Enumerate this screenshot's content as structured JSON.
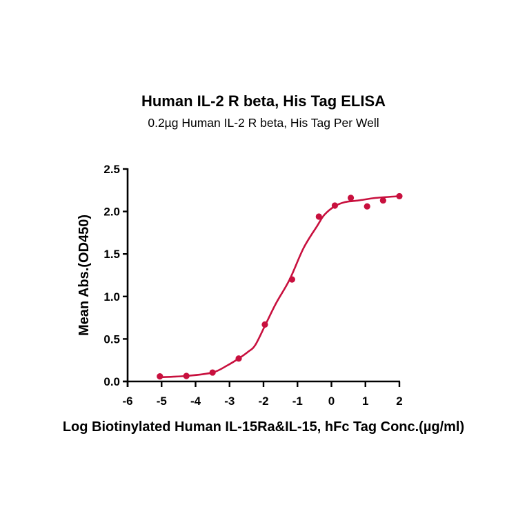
{
  "chart_data": {
    "type": "scatter",
    "title": "Human IL-2 R beta, His Tag ELISA",
    "subtitle": "0.2µg Human IL-2 R beta, His Tag Per Well",
    "xlabel": "Log Biotinylated Human IL-15Ra&IL-15, hFc Tag Conc.(µg/ml)",
    "ylabel": "Mean Abs.(OD450)",
    "xlim": [
      -6,
      2
    ],
    "ylim": [
      0,
      2.5
    ],
    "x_ticks": [
      -6,
      -5,
      -4,
      -3,
      -2,
      -1,
      0,
      1,
      2
    ],
    "x_tick_labels": [
      "-6",
      "-5",
      "-4",
      "-3",
      "-2",
      "-1",
      "0",
      "1",
      "2"
    ],
    "y_ticks": [
      0,
      0.5,
      1.0,
      1.5,
      2.0,
      2.5
    ],
    "y_tick_labels": [
      "0.0",
      "0.5",
      "1.0",
      "1.5",
      "2.0",
      "2.5"
    ],
    "grid": false,
    "legend": null,
    "color": "#C8103E",
    "series": [
      {
        "name": "Mean Abs.(OD450)",
        "kind": "points",
        "x": [
          -5.05,
          -4.27,
          -3.5,
          -2.73,
          -1.96,
          -1.16,
          -0.37,
          0.1,
          0.57,
          1.05,
          1.52,
          2.0
        ],
        "y": [
          0.06,
          0.065,
          0.105,
          0.27,
          0.67,
          1.2,
          1.94,
          2.07,
          2.16,
          2.06,
          2.13,
          2.18
        ]
      },
      {
        "name": "Fitted curve",
        "kind": "line",
        "x": [
          -5.05,
          -4.27,
          -3.5,
          -3.06,
          -2.73,
          -2.45,
          -2.24,
          -1.94,
          -1.63,
          -1.23,
          -0.82,
          -0.42,
          -0.21,
          0.09,
          0.4,
          0.8,
          1.31,
          2.0
        ],
        "y": [
          0.05,
          0.065,
          0.105,
          0.19,
          0.27,
          0.35,
          0.43,
          0.67,
          0.92,
          1.2,
          1.57,
          1.83,
          1.96,
          2.06,
          2.11,
          2.13,
          2.16,
          2.18
        ]
      }
    ]
  }
}
